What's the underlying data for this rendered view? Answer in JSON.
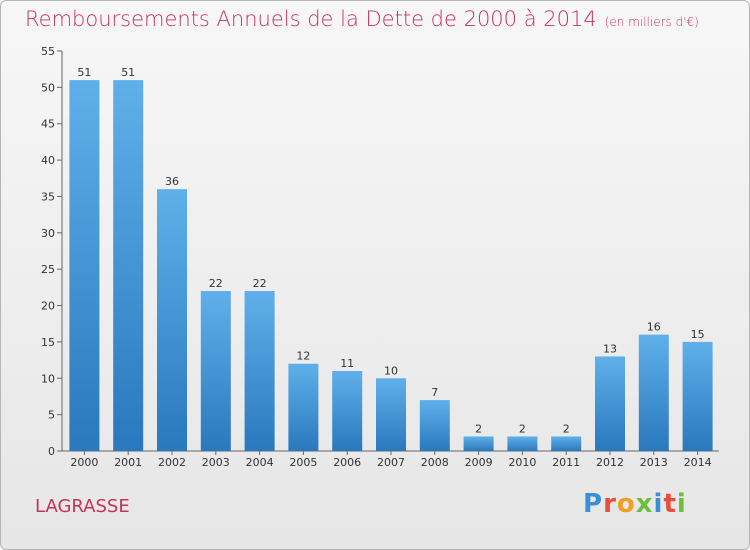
{
  "header": {
    "title": "Remboursements Annuels de la Dette de 2000 à 2014",
    "unit": "(en milliers d'€)"
  },
  "footer": {
    "commune": "LAGRASSE",
    "logo": "Proxiti"
  },
  "colors": {
    "accent": "#c8325a",
    "bar_light": "#5fb0ea",
    "bar_dark": "#2a78bd"
  },
  "chart_data": {
    "type": "bar",
    "title": "Remboursements Annuels de la Dette de 2000 à 2014",
    "subtitle": "(en milliers d'€)",
    "categories": [
      "2000",
      "2001",
      "2002",
      "2003",
      "2004",
      "2005",
      "2006",
      "2007",
      "2008",
      "2009",
      "2010",
      "2011",
      "2012",
      "2013",
      "2014"
    ],
    "values": [
      51,
      51,
      36,
      22,
      22,
      12,
      11,
      10,
      7,
      2,
      2,
      2,
      13,
      16,
      15
    ],
    "data_labels": [
      "51",
      "51",
      "36",
      "22",
      "22",
      "12",
      "11",
      "10",
      "7",
      "2",
      "2",
      "2",
      "13",
      "16",
      "15"
    ],
    "xlabel": "",
    "ylabel": "",
    "ylim": [
      0,
      55
    ],
    "yticks": [
      "0",
      "5",
      "10",
      "15",
      "20",
      "25",
      "30",
      "35",
      "40",
      "45",
      "50",
      "55"
    ],
    "grid": false,
    "legend": "none"
  }
}
